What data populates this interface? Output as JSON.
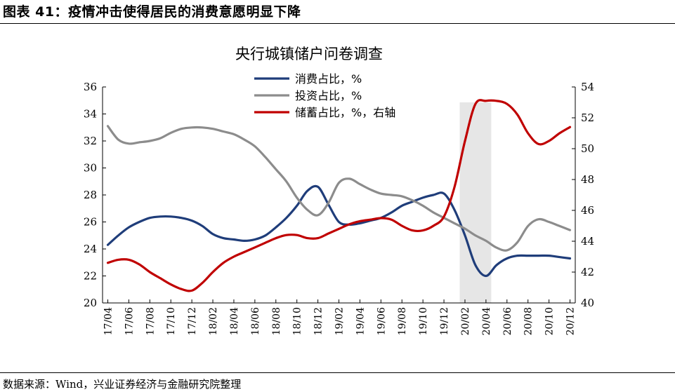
{
  "header": {
    "figure_title": "图表 41：疫情冲击使得居民的消费意愿明显下降"
  },
  "footer": {
    "source": "数据来源：Wind，兴业证券经济与金融研究院整理"
  },
  "chart_data": {
    "type": "line",
    "title": "央行城镇储户问卷调查",
    "x": [
      "17/04",
      "17/05",
      "17/06",
      "17/07",
      "17/08",
      "17/09",
      "17/10",
      "17/11",
      "17/12",
      "18/01",
      "18/02",
      "18/03",
      "18/04",
      "18/05",
      "18/06",
      "18/07",
      "18/08",
      "18/09",
      "18/10",
      "18/11",
      "18/12",
      "19/01",
      "19/02",
      "19/03",
      "19/04",
      "19/05",
      "19/06",
      "19/07",
      "19/08",
      "19/09",
      "19/10",
      "19/11",
      "19/12",
      "20/01",
      "20/02",
      "20/03",
      "20/04",
      "20/05",
      "20/06",
      "20/07",
      "20/08",
      "20/09",
      "20/10",
      "20/11",
      "20/12"
    ],
    "x_tick_labels": [
      "17/04",
      "17/06",
      "17/08",
      "17/10",
      "17/12",
      "18/02",
      "18/04",
      "18/06",
      "18/08",
      "18/10",
      "18/12",
      "19/02",
      "19/04",
      "19/06",
      "19/08",
      "19/10",
      "19/12",
      "20/02",
      "20/04",
      "20/06",
      "20/08",
      "20/10",
      "20/12"
    ],
    "y_left": {
      "min": 20,
      "max": 36,
      "step": 2,
      "ticks": [
        "20",
        "22",
        "24",
        "26",
        "28",
        "30",
        "32",
        "34",
        "36"
      ]
    },
    "y_right": {
      "min": 40,
      "max": 54,
      "step": 2,
      "ticks": [
        "40",
        "42",
        "44",
        "46",
        "48",
        "50",
        "52",
        "54"
      ]
    },
    "shaded_region": {
      "from": "20/02",
      "to": "20/05",
      "color": "#e6e6e6"
    },
    "legend_position": "top-center",
    "grid": false,
    "series": [
      {
        "name": "消费占比，%",
        "axis": "left",
        "color": "#1f3d7a",
        "values": [
          24.3,
          25.0,
          25.6,
          26.0,
          26.3,
          26.4,
          26.4,
          26.3,
          26.1,
          25.7,
          25.1,
          24.8,
          24.7,
          24.6,
          24.7,
          25.0,
          25.6,
          26.3,
          27.2,
          28.3,
          28.6,
          27.3,
          26.0,
          25.8,
          25.9,
          26.1,
          26.3,
          26.7,
          27.2,
          27.5,
          27.8,
          28.0,
          28.1,
          26.9,
          25.0,
          22.8,
          22.0,
          22.8,
          23.3,
          23.5,
          23.5,
          23.5,
          23.5,
          23.4,
          23.3
        ]
      },
      {
        "name": "投资占比，%",
        "axis": "left",
        "color": "#8c8c8c",
        "values": [
          33.1,
          32.1,
          31.8,
          31.9,
          32.0,
          32.2,
          32.6,
          32.9,
          33.0,
          33.0,
          32.9,
          32.7,
          32.5,
          32.1,
          31.6,
          30.8,
          29.9,
          29.0,
          27.8,
          26.9,
          26.5,
          27.4,
          28.9,
          29.2,
          28.8,
          28.4,
          28.1,
          28.0,
          27.9,
          27.6,
          27.2,
          26.7,
          26.3,
          25.9,
          25.5,
          25.0,
          24.6,
          24.1,
          23.9,
          24.5,
          25.7,
          26.2,
          26.0,
          25.7,
          25.4
        ]
      },
      {
        "name": "储蓄占比，%，右轴",
        "axis": "right",
        "color": "#c00000",
        "values": [
          42.6,
          42.8,
          42.8,
          42.5,
          42.0,
          41.6,
          41.2,
          40.9,
          40.8,
          41.3,
          42.0,
          42.6,
          43.0,
          43.3,
          43.6,
          43.9,
          44.2,
          44.4,
          44.4,
          44.2,
          44.2,
          44.5,
          44.8,
          45.1,
          45.3,
          45.4,
          45.5,
          45.4,
          45.0,
          44.7,
          44.7,
          45.0,
          45.6,
          47.5,
          50.5,
          52.9,
          53.1,
          53.1,
          52.9,
          52.2,
          51.0,
          50.3,
          50.5,
          51.0,
          51.4
        ]
      }
    ]
  }
}
